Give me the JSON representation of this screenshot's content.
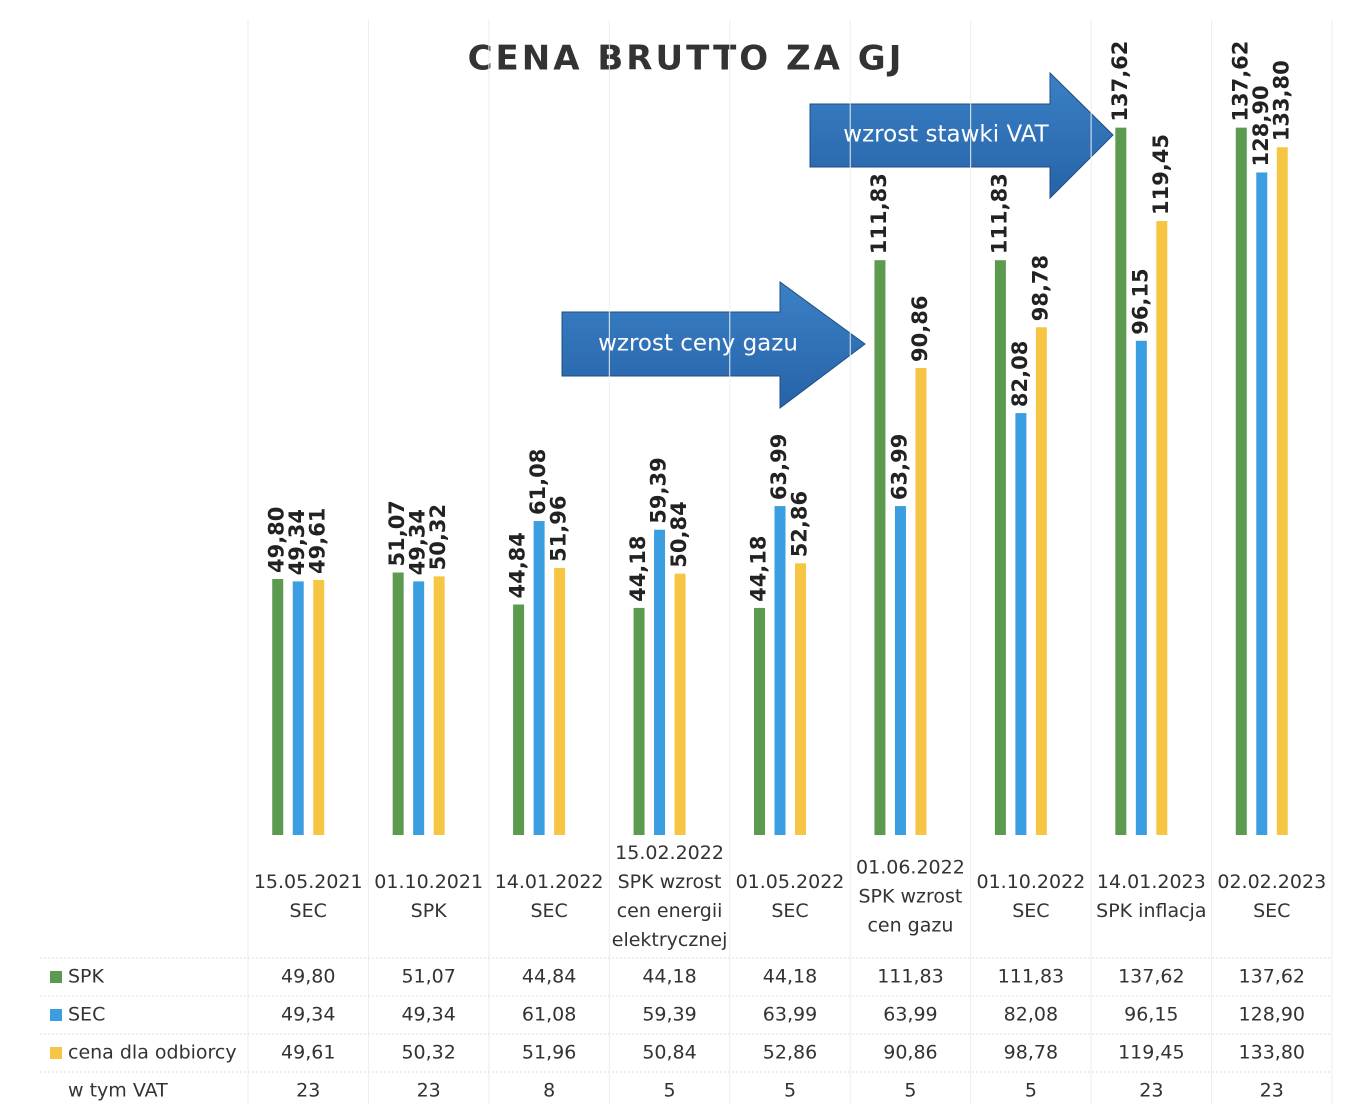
{
  "chart_data": {
    "type": "bar",
    "title": "CENA BRUTTO ZA GJ",
    "categories": [
      [
        "15.05.2021",
        "SEC"
      ],
      [
        "01.10.2021",
        "SPK"
      ],
      [
        "14.01.2022",
        "SEC"
      ],
      [
        "15.02.2022",
        "SPK wzrost",
        "cen energii",
        "elektrycznej"
      ],
      [
        "01.05.2022",
        "SEC"
      ],
      [
        "01.06.2022",
        "SPK wzrost",
        "cen gazu"
      ],
      [
        "01.10.2022",
        "SEC"
      ],
      [
        "14.01.2023",
        "SPK inflacja"
      ],
      [
        "02.02.2023",
        "SEC"
      ]
    ],
    "series": [
      {
        "name": "SPK",
        "color": "#5b9a4f",
        "values": [
          49.8,
          51.07,
          44.84,
          44.18,
          44.18,
          111.83,
          111.83,
          137.62,
          137.62
        ],
        "value_labels": [
          "49,80",
          "51,07",
          "44,84",
          "44,18",
          "44,18",
          "111,83",
          "111,83",
          "137,62",
          "137,62"
        ]
      },
      {
        "name": "SEC",
        "color": "#3a9ee0",
        "values": [
          49.34,
          49.34,
          61.08,
          59.39,
          63.99,
          63.99,
          82.08,
          96.15,
          128.9
        ],
        "value_labels": [
          "49,34",
          "49,34",
          "61,08",
          "59,39",
          "63,99",
          "63,99",
          "82,08",
          "96,15",
          "128,90"
        ]
      },
      {
        "name": "cena dla odbiorcy",
        "color": "#f6c544",
        "values": [
          49.61,
          50.32,
          51.96,
          50.84,
          52.86,
          90.86,
          98.78,
          119.45,
          133.8
        ],
        "value_labels": [
          "49,61",
          "50,32",
          "51,96",
          "50,84",
          "52,86",
          "90,86",
          "98,78",
          "119,45",
          "133,80"
        ]
      }
    ],
    "vat": {
      "name": "w tym VAT",
      "values": [
        23,
        23,
        8,
        5,
        5,
        5,
        5,
        23,
        23
      ]
    },
    "annotations": [
      "wzrost ceny gazu",
      "wzrost stawki VAT"
    ],
    "ylim": [
      0,
      150
    ]
  }
}
